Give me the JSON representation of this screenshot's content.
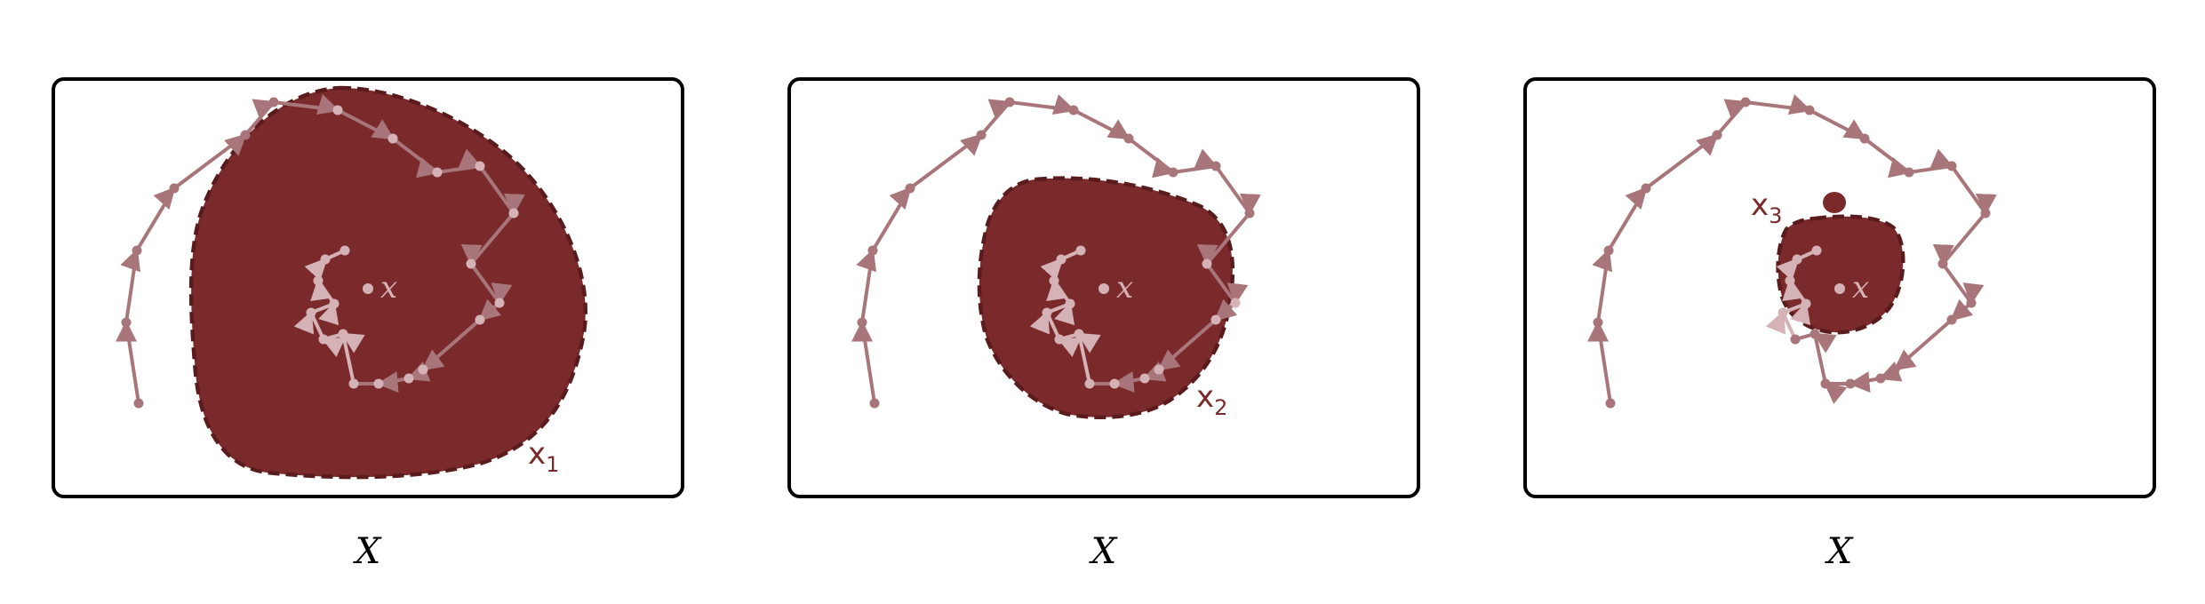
{
  "colors": {
    "region_fill": "#7b2a2c",
    "region_stroke": "#5a1b1d",
    "path_outer": "#a8767a",
    "path_inner": "#d4b2b6",
    "frame": "#000000"
  },
  "panels": [
    {
      "space_label": "X",
      "point_label": "x",
      "set_label": "x",
      "set_subscript": "1"
    },
    {
      "space_label": "X",
      "point_label": "x",
      "set_label": "x",
      "set_subscript": "2"
    },
    {
      "space_label": "X",
      "point_label": "x",
      "set_label": "x",
      "set_subscript": "3"
    }
  ]
}
